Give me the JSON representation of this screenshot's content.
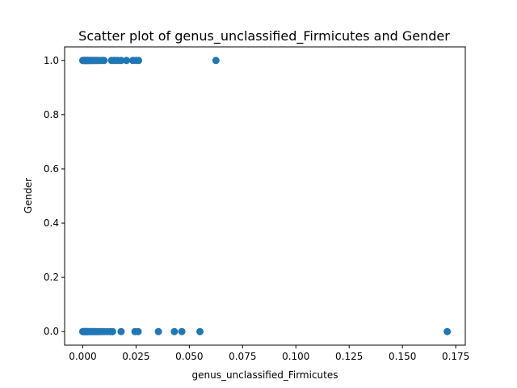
{
  "chart_data": {
    "type": "scatter",
    "title": "Scatter plot of genus_unclassified_Firmicutes and Gender",
    "xlabel": "genus_unclassified_Firmicutes",
    "ylabel": "Gender",
    "xlim": [
      -0.0085,
      0.1795
    ],
    "ylim": [
      -0.05,
      1.05
    ],
    "xticks": [
      0.0,
      0.025,
      0.05,
      0.075,
      0.1,
      0.125,
      0.15,
      0.175
    ],
    "xtick_labels": [
      "0.000",
      "0.025",
      "0.050",
      "0.075",
      "0.100",
      "0.125",
      "0.150",
      "0.175"
    ],
    "yticks": [
      0.0,
      0.2,
      0.4,
      0.6,
      0.8,
      1.0
    ],
    "ytick_labels": [
      "0.0",
      "0.2",
      "0.4",
      "0.6",
      "0.8",
      "1.0"
    ],
    "grid": false,
    "legend": "none",
    "marker_color": "#1f77b4",
    "series": [
      {
        "points": [
          [
            0.0,
            1
          ],
          [
            0.0003,
            1
          ],
          [
            0.0006,
            1
          ],
          [
            0.0009,
            1
          ],
          [
            0.0012,
            1
          ],
          [
            0.0015,
            1
          ],
          [
            0.0018,
            1
          ],
          [
            0.0021,
            1
          ],
          [
            0.0024,
            1
          ],
          [
            0.0028,
            1
          ],
          [
            0.0032,
            1
          ],
          [
            0.0036,
            1
          ],
          [
            0.004,
            1
          ],
          [
            0.0045,
            1
          ],
          [
            0.005,
            1
          ],
          [
            0.0055,
            1
          ],
          [
            0.006,
            1
          ],
          [
            0.0066,
            1
          ],
          [
            0.0072,
            1
          ],
          [
            0.008,
            1
          ],
          [
            0.009,
            1
          ],
          [
            0.01,
            1
          ],
          [
            0.0135,
            1
          ],
          [
            0.0145,
            1
          ],
          [
            0.0155,
            1
          ],
          [
            0.0165,
            1
          ],
          [
            0.018,
            1
          ],
          [
            0.0205,
            1
          ],
          [
            0.0235,
            1
          ],
          [
            0.025,
            1
          ],
          [
            0.0262,
            1
          ],
          [
            0.0625,
            1
          ],
          [
            0.0,
            0
          ],
          [
            0.0003,
            0
          ],
          [
            0.0006,
            0
          ],
          [
            0.0009,
            0
          ],
          [
            0.0012,
            0
          ],
          [
            0.0015,
            0
          ],
          [
            0.0018,
            0
          ],
          [
            0.0021,
            0
          ],
          [
            0.0025,
            0
          ],
          [
            0.003,
            0
          ],
          [
            0.0035,
            0
          ],
          [
            0.004,
            0
          ],
          [
            0.0045,
            0
          ],
          [
            0.005,
            0
          ],
          [
            0.0056,
            0
          ],
          [
            0.0062,
            0
          ],
          [
            0.0068,
            0
          ],
          [
            0.0075,
            0
          ],
          [
            0.0085,
            0
          ],
          [
            0.01,
            0
          ],
          [
            0.0115,
            0
          ],
          [
            0.013,
            0
          ],
          [
            0.014,
            0
          ],
          [
            0.018,
            0
          ],
          [
            0.0245,
            0
          ],
          [
            0.026,
            0
          ],
          [
            0.0355,
            0
          ],
          [
            0.043,
            0
          ],
          [
            0.0465,
            0
          ],
          [
            0.055,
            0
          ],
          [
            0.171,
            0
          ]
        ]
      }
    ]
  }
}
